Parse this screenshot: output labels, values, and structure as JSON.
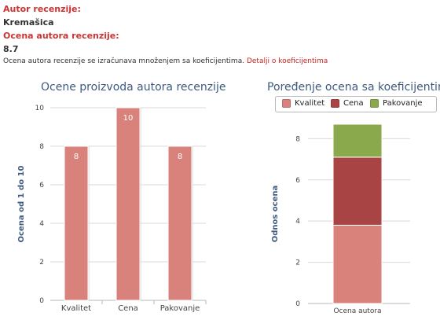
{
  "review": {
    "author_label": "Autor recenzije:",
    "author_name": "Kremašica",
    "rating_label": "Ocena autora recenzije:",
    "rating_value": "8.7",
    "note": "Ocena autora recenzije se izračunava množenjem sa koeficijentima.",
    "note_link": "Detalji o koeficijentima"
  },
  "colors": {
    "label_red": "#cc3333",
    "kvalitet": "#d9827c",
    "cena": "#a84444",
    "pakovanje": "#8aa84c",
    "title_blue": "#3e5a80"
  },
  "chart_data": [
    {
      "type": "bar",
      "title": "Ocene proizvoda autora recenzije",
      "ylabel": "Ocena od 1 do 10",
      "xlabel": "",
      "categories": [
        "Kvalitet",
        "Cena",
        "Pakovanje"
      ],
      "values": [
        8,
        10,
        8
      ],
      "data_labels": [
        "8",
        "10",
        "8"
      ],
      "ylim": [
        0,
        10
      ],
      "yticks": [
        0,
        2,
        4,
        6,
        8,
        10
      ],
      "grid": true,
      "legend": "none"
    },
    {
      "type": "bar",
      "stacked": true,
      "title": "Poređenje ocena sa koeficijentima",
      "ylabel": "Odnos ocena",
      "xlabel": "",
      "categories": [
        "Ocena autora"
      ],
      "series": [
        {
          "name": "Kvalitet",
          "values": [
            3.8
          ]
        },
        {
          "name": "Cena",
          "values": [
            3.3
          ]
        },
        {
          "name": "Pakovanje",
          "values": [
            1.6
          ]
        }
      ],
      "ylim": [
        0,
        8.7
      ],
      "yticks": [
        0,
        2,
        4,
        6,
        8
      ],
      "grid": true,
      "legend": "top"
    }
  ]
}
